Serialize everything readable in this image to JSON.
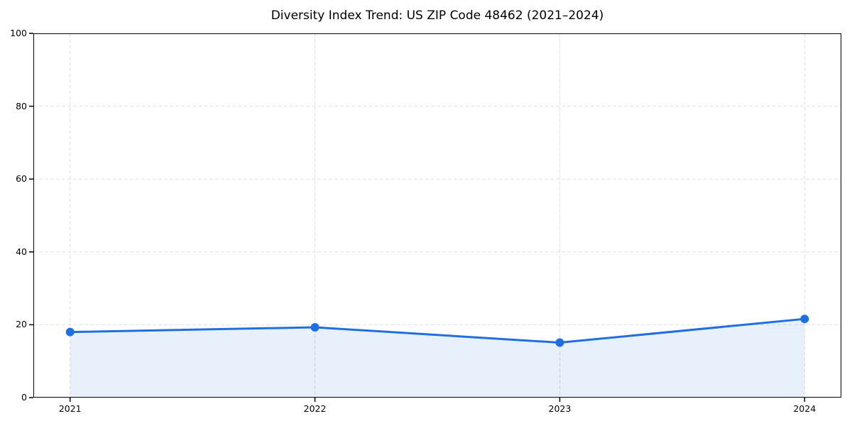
{
  "figure": {
    "background": "#ffffff"
  },
  "chart_data": {
    "type": "line",
    "title": "Diversity Index Trend: US ZIP Code 48462 (2021–2024)",
    "series": [
      {
        "name": "Diversity Index",
        "x": [
          2021,
          2022,
          2023,
          2024
        ],
        "values": [
          18.0,
          19.3,
          15.1,
          21.6
        ]
      }
    ],
    "xlabel": "",
    "ylabel": "",
    "xticks": [
      2021,
      2022,
      2023,
      2024
    ],
    "xtick_labels": [
      "2021",
      "2022",
      "2023",
      "2024"
    ],
    "yticks": [
      0,
      20,
      40,
      60,
      80,
      100
    ],
    "ytick_labels": [
      "0",
      "20",
      "40",
      "60",
      "80",
      "100"
    ],
    "xlim": [
      2020.85,
      2024.15
    ],
    "ylim": [
      0,
      100
    ],
    "grid": true,
    "grid_style": "dashed",
    "legend": "none",
    "area_fill": true,
    "marker": "circle",
    "colors": {
      "line": "#1f6fe0",
      "marker": "#1f6fe0",
      "fill": "#1f6fe0",
      "fill_opacity": 0.1,
      "grid": "#e0e0e0",
      "spine": "#000000",
      "text": "#000000",
      "background": "#ffffff"
    }
  }
}
